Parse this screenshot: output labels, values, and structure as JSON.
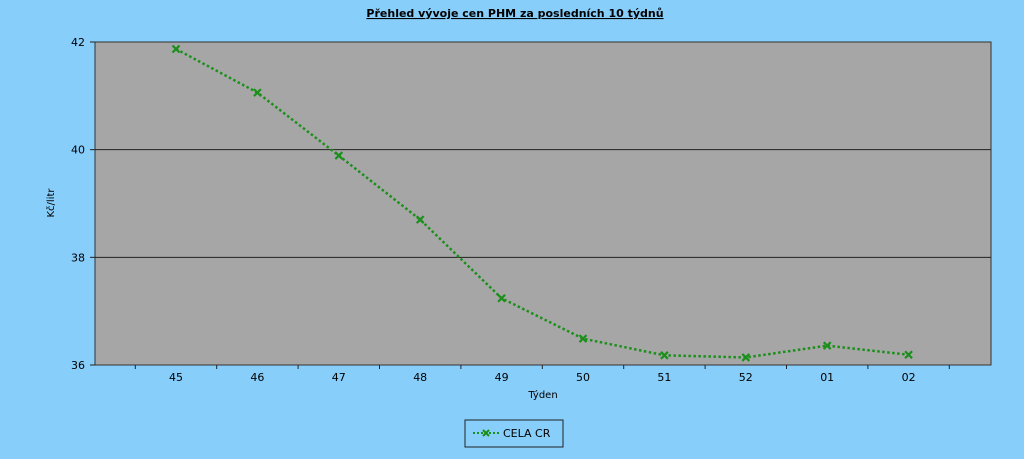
{
  "chart_data": {
    "type": "line",
    "title": "Přehled vývoje cen PHM za posledních 10 týdnů",
    "xlabel": "Týden",
    "ylabel": "Kč/litr",
    "categories": [
      "45",
      "46",
      "47",
      "48",
      "49",
      "50",
      "51",
      "52",
      "01",
      "02"
    ],
    "series": [
      {
        "name": "CELA CR",
        "values": [
          41.87,
          41.06,
          39.89,
          38.7,
          37.24,
          36.49,
          36.18,
          36.14,
          36.36,
          36.19
        ],
        "color": "#1a8f1a"
      }
    ],
    "ylim": [
      36,
      42
    ],
    "yticks": [
      36,
      38,
      40,
      42
    ],
    "grid": true,
    "legend_position": "bottom-center",
    "colors": {
      "background": "#87cefa",
      "plot_area": "#a6a6a6",
      "line": "#1a8f1a"
    }
  }
}
